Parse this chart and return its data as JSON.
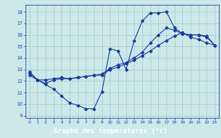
{
  "line1_x": [
    0,
    1,
    2,
    3,
    4,
    5,
    6,
    7,
    8,
    9,
    10,
    11,
    12,
    13,
    14,
    15,
    16,
    17,
    18,
    19,
    20,
    21,
    22,
    23
  ],
  "line1_y": [
    12.8,
    12.1,
    11.7,
    11.3,
    10.7,
    10.1,
    9.9,
    9.6,
    9.6,
    11.1,
    14.8,
    14.6,
    13.0,
    15.5,
    17.2,
    17.9,
    17.9,
    18.0,
    16.6,
    16.1,
    16.0,
    16.0,
    15.8,
    15.1
  ],
  "line2_x": [
    0,
    1,
    2,
    3,
    4,
    5,
    6,
    7,
    8,
    9,
    10,
    11,
    12,
    13,
    14,
    15,
    16,
    17,
    18,
    19,
    20,
    21,
    22,
    23
  ],
  "line2_y": [
    12.5,
    12.1,
    12.1,
    12.2,
    12.3,
    12.2,
    12.3,
    12.4,
    12.5,
    12.5,
    13.0,
    13.2,
    13.5,
    13.8,
    14.2,
    14.6,
    15.1,
    15.5,
    15.9,
    16.2,
    15.8,
    15.6,
    15.3,
    15.1
  ],
  "line3_x": [
    0,
    1,
    2,
    3,
    4,
    5,
    6,
    7,
    8,
    9,
    10,
    11,
    12,
    13,
    14,
    15,
    16,
    17,
    18,
    19,
    20,
    21,
    22,
    23
  ],
  "line3_y": [
    12.7,
    12.1,
    11.8,
    12.1,
    12.2,
    12.2,
    12.3,
    12.4,
    12.5,
    12.6,
    13.1,
    13.4,
    13.6,
    14.0,
    14.5,
    15.3,
    16.0,
    16.6,
    16.4,
    16.1,
    16.0,
    16.0,
    15.9,
    15.1
  ],
  "line_color": "#1a3a9e",
  "bg_color": "#cce8e8",
  "grid_color": "#9ec8c8",
  "xlabel": "Graphe des températures (°c)",
  "xlabel_color": "#ffffff",
  "xlabel_bg": "#2244aa",
  "ylim": [
    8.8,
    18.6
  ],
  "xlim": [
    -0.5,
    23.5
  ],
  "yticks": [
    9,
    10,
    11,
    12,
    13,
    14,
    15,
    16,
    17,
    18
  ],
  "xticks": [
    0,
    1,
    2,
    3,
    4,
    5,
    6,
    7,
    8,
    9,
    10,
    11,
    12,
    13,
    14,
    15,
    16,
    17,
    18,
    19,
    20,
    21,
    22,
    23
  ],
  "tick_fontsize": 4.8,
  "xlabel_fontsize": 7.0,
  "marker": "D",
  "markersize": 2.0,
  "linewidth": 0.85
}
